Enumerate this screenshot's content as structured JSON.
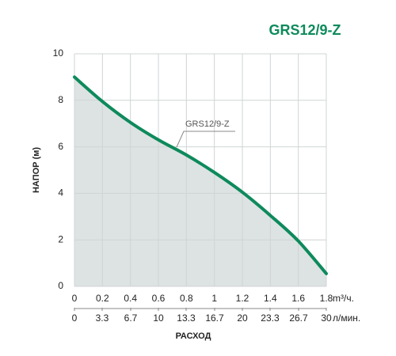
{
  "chart_data": {
    "type": "line",
    "title": "GRS12/9-Z",
    "x": [
      0,
      0.2,
      0.4,
      0.6,
      0.8,
      1.0,
      1.2,
      1.4,
      1.6,
      1.8
    ],
    "series": [
      {
        "name": "GRS12/9-Z",
        "color": "#0e8a5c",
        "values": [
          9.0,
          7.95,
          7.05,
          6.3,
          5.65,
          4.9,
          4.05,
          3.05,
          1.95,
          0.55
        ]
      }
    ],
    "xlim": [
      0,
      1.8
    ],
    "xticks": [
      0,
      0.2,
      0.4,
      0.6,
      0.8,
      1,
      1.2,
      1.4,
      1.6,
      1.8
    ],
    "xunit": "m³/ч.",
    "x2lim": [
      0,
      30
    ],
    "x2ticks": [
      0,
      3.3,
      6.7,
      10,
      13.3,
      16.7,
      20,
      23.3,
      26.7,
      30
    ],
    "x2unit": "л/мин.",
    "ylim": [
      0,
      10
    ],
    "yticks": [
      0,
      2,
      4,
      6,
      8,
      10
    ],
    "ylabel": "НАПОР (м)",
    "xlabel": "РАСХОД",
    "grid": true,
    "fill": "#dde3e3"
  }
}
